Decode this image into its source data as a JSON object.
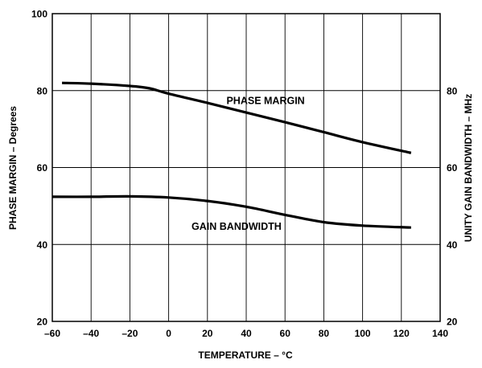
{
  "chart_data": {
    "type": "line",
    "xlabel": "TEMPERATURE – °C",
    "ylabel_left": "PHASE MARGIN – Degrees",
    "ylabel_right": "UNITY GAIN BANDWIDTH – MHz",
    "xlim": [
      -60,
      140
    ],
    "ylim_left": [
      20,
      100
    ],
    "ylim_right": [
      20,
      100
    ],
    "x_ticks": [
      -60,
      -40,
      -20,
      0,
      20,
      40,
      60,
      80,
      100,
      120,
      140
    ],
    "x_tick_labels": [
      "–60",
      "–40",
      "–20",
      "0",
      "20",
      "40",
      "60",
      "80",
      "100",
      "120",
      "140"
    ],
    "y_ticks_left": [
      20,
      40,
      60,
      80,
      100
    ],
    "y_tick_labels_left": [
      "20",
      "40",
      "60",
      "80",
      "100"
    ],
    "y_ticks_right": [
      20,
      40,
      60,
      80
    ],
    "y_tick_labels_right": [
      "20",
      "40",
      "60",
      "80"
    ],
    "grid": true,
    "series": [
      {
        "name": "PHASE MARGIN",
        "axis": "left",
        "label_at": [
          50,
          76.5
        ],
        "x": [
          -55,
          -40,
          -20,
          -10,
          0,
          20,
          40,
          60,
          80,
          100,
          125
        ],
        "y": [
          82,
          81.8,
          81.2,
          80.6,
          79.2,
          76.8,
          74.3,
          71.8,
          69.2,
          66.6,
          63.8
        ]
      },
      {
        "name": "GAIN BANDWIDTH",
        "axis": "right",
        "label_at": [
          35,
          43.8
        ],
        "x": [
          -60,
          -40,
          -20,
          0,
          20,
          40,
          60,
          80,
          100,
          125
        ],
        "y": [
          52.4,
          52.4,
          52.5,
          52.2,
          51.3,
          49.8,
          47.7,
          45.8,
          44.9,
          44.4
        ]
      }
    ]
  }
}
